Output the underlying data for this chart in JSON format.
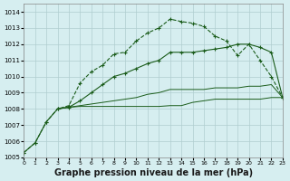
{
  "bg_color": "#d6eef0",
  "grid_color": "#b0cdd0",
  "line_color_main": "#1a5c1a",
  "line_color_dotted": "#1a5c1a",
  "xlabel": "Graphe pression niveau de la mer (hPa)",
  "xlabel_fontsize": 7,
  "xlim": [
    0,
    23
  ],
  "ylim": [
    1005,
    1014.5
  ],
  "yticks": [
    1005,
    1006,
    1007,
    1008,
    1009,
    1010,
    1011,
    1012,
    1013,
    1014
  ],
  "xtick_labels": [
    "0",
    "1",
    "2",
    "3",
    "4",
    "5",
    "6",
    "7",
    "8",
    "9",
    "10",
    "11",
    "12",
    "13",
    "14",
    "15",
    "16",
    "17",
    "18",
    "19",
    "20",
    "21",
    "22",
    "23"
  ],
  "series1_x": [
    0,
    1,
    2,
    3,
    4,
    5,
    6,
    7,
    8,
    9,
    10,
    11,
    12,
    13,
    14,
    15,
    16,
    17,
    18,
    19,
    20,
    21,
    22,
    23
  ],
  "series1_y": [
    1005.3,
    1005.9,
    1007.2,
    1008.0,
    1008.2,
    1009.6,
    1010.3,
    1010.7,
    1011.4,
    1011.5,
    1012.2,
    1012.7,
    1013.0,
    1013.55,
    1013.4,
    1013.3,
    1013.1,
    1012.5,
    1012.2,
    1011.3,
    1012.0,
    1011.0,
    1010.0,
    1008.7
  ],
  "series2_x": [
    0,
    1,
    2,
    3,
    4,
    5,
    6,
    7,
    8,
    9,
    10,
    11,
    12,
    13,
    14,
    15,
    16,
    17,
    18,
    19,
    20,
    21,
    22,
    23
  ],
  "series2_y": [
    1005.3,
    1005.9,
    1007.2,
    1008.0,
    1008.1,
    1008.5,
    1009.0,
    1009.5,
    1010.0,
    1010.2,
    1010.5,
    1010.8,
    1011.0,
    1011.5,
    1011.5,
    1011.5,
    1011.6,
    1011.7,
    1011.8,
    1012.0,
    1012.0,
    1011.8,
    1011.5,
    1008.7
  ],
  "series3_x": [
    3,
    4,
    5,
    6,
    7,
    8,
    9,
    10,
    11,
    12,
    13,
    14,
    15,
    16,
    17,
    18,
    19,
    20,
    21,
    22,
    23
  ],
  "series3_y": [
    1008.0,
    1008.1,
    1008.15,
    1008.15,
    1008.15,
    1008.15,
    1008.15,
    1008.15,
    1008.15,
    1008.15,
    1008.2,
    1008.2,
    1008.4,
    1008.5,
    1008.6,
    1008.6,
    1008.6,
    1008.6,
    1008.6,
    1008.7,
    1008.7
  ],
  "series4_x": [
    3,
    4,
    5,
    6,
    7,
    8,
    9,
    10,
    11,
    12,
    13,
    14,
    15,
    16,
    17,
    18,
    19,
    20,
    21,
    22,
    23
  ],
  "series4_y": [
    1008.0,
    1008.1,
    1008.2,
    1008.3,
    1008.4,
    1008.5,
    1008.6,
    1008.7,
    1008.9,
    1009.0,
    1009.2,
    1009.2,
    1009.2,
    1009.2,
    1009.3,
    1009.3,
    1009.3,
    1009.4,
    1009.4,
    1009.5,
    1008.7
  ]
}
